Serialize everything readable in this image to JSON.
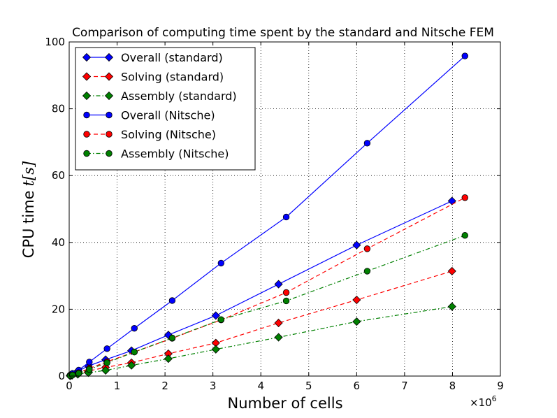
{
  "chart_data": {
    "type": "line",
    "title": "Comparison of computing time spent by the standard and Nitsche FEM",
    "xlabel": "Number of cells",
    "ylabel_text": "CPU time",
    "ylabel_math": "t[s]",
    "x_multiplier": "×10",
    "x_multiplier_exp": "6",
    "xlim": [
      0,
      9
    ],
    "ylim": [
      0,
      100
    ],
    "xticks": [
      0,
      1,
      2,
      3,
      4,
      5,
      6,
      7,
      8,
      9
    ],
    "yticks": [
      0,
      20,
      40,
      60,
      80,
      100
    ],
    "grid": true,
    "legend_position": "upper-left",
    "series": [
      {
        "name": "Overall (standard)",
        "color": "#0000ff",
        "line": "solid",
        "marker": "diamond",
        "x": [
          0.02,
          0.06,
          0.18,
          0.4,
          0.76,
          1.3,
          2.07,
          3.06,
          4.37,
          6.0,
          7.99
        ],
        "y": [
          0.2,
          0.6,
          1.5,
          3.0,
          4.9,
          7.6,
          12.3,
          18.1,
          27.5,
          39.2,
          52.4
        ]
      },
      {
        "name": "Solving (standard)",
        "color": "#ff0000",
        "line": "dashed",
        "marker": "diamond",
        "x": [
          0.02,
          0.06,
          0.18,
          0.4,
          0.76,
          1.3,
          2.07,
          3.06,
          4.37,
          6.0,
          7.99
        ],
        "y": [
          0.1,
          0.3,
          0.7,
          1.5,
          2.6,
          4.0,
          6.7,
          9.9,
          15.9,
          22.8,
          31.4
        ]
      },
      {
        "name": "Assembly (standard)",
        "color": "#008000",
        "line": "dashdot",
        "marker": "diamond",
        "x": [
          0.02,
          0.06,
          0.18,
          0.4,
          0.76,
          1.3,
          2.07,
          3.06,
          4.37,
          6.0,
          7.99
        ],
        "y": [
          0.05,
          0.2,
          0.5,
          1.0,
          1.7,
          3.2,
          5.2,
          8.0,
          11.6,
          16.3,
          20.8
        ]
      },
      {
        "name": "Overall (Nitsche)",
        "color": "#0000ff",
        "line": "solid",
        "marker": "circle",
        "x": [
          0.02,
          0.07,
          0.2,
          0.42,
          0.79,
          1.36,
          2.15,
          3.17,
          4.53,
          6.22,
          8.26
        ],
        "y": [
          0.3,
          0.8,
          1.8,
          4.2,
          8.2,
          14.3,
          22.6,
          33.8,
          47.6,
          69.7,
          95.8
        ]
      },
      {
        "name": "Solving (Nitsche)",
        "color": "#ff0000",
        "line": "dashed",
        "marker": "circle",
        "x": [
          0.02,
          0.07,
          0.2,
          0.42,
          0.79,
          1.36,
          2.15,
          3.17,
          4.53,
          6.22,
          8.26
        ],
        "y": [
          0.15,
          0.4,
          1.0,
          2.3,
          4.3,
          7.2,
          11.3,
          16.8,
          25.0,
          38.1,
          53.4
        ]
      },
      {
        "name": "Assembly (Nitsche)",
        "color": "#008000",
        "line": "dashdot",
        "marker": "circle",
        "x": [
          0.02,
          0.07,
          0.2,
          0.42,
          0.79,
          1.36,
          2.15,
          3.17,
          4.53,
          6.22,
          8.26
        ],
        "y": [
          0.1,
          0.3,
          0.8,
          2.0,
          4.0,
          7.2,
          11.4,
          16.9,
          22.5,
          31.4,
          42.1
        ]
      }
    ]
  }
}
